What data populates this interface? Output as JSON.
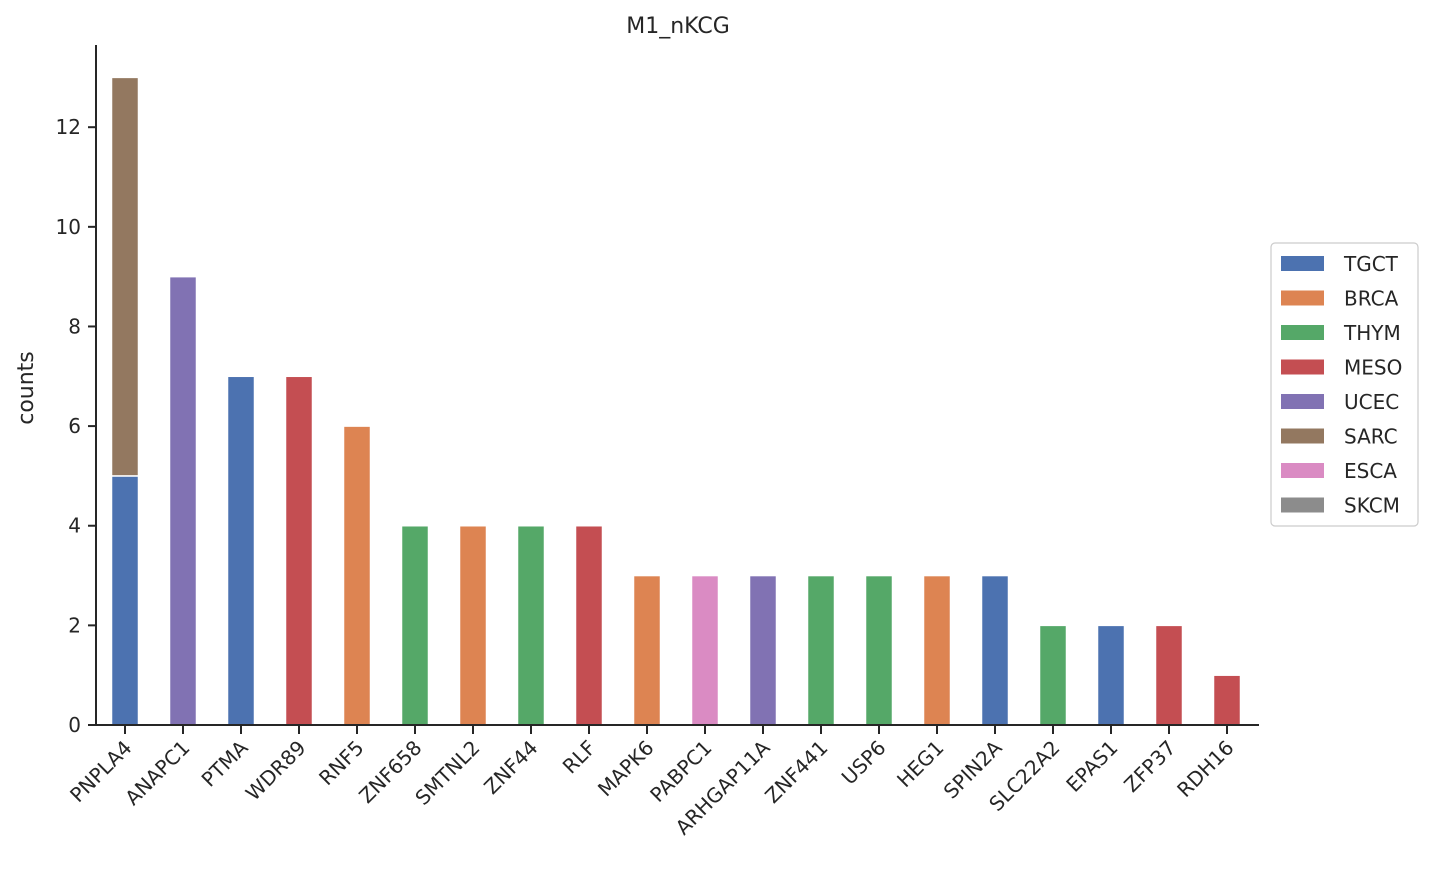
{
  "chart_data": {
    "type": "bar",
    "stacked": true,
    "title": "M1_nKCG",
    "xlabel": "",
    "ylabel": "counts",
    "ylim": [
      0,
      13.65
    ],
    "yticks": [
      0,
      2,
      4,
      6,
      8,
      10,
      12
    ],
    "grid": false,
    "legend": {
      "placement": "right-center"
    },
    "categories": [
      "PNPLA4",
      "ANAPC1",
      "PTMA",
      "WDR89",
      "RNF5",
      "ZNF658",
      "SMTNL2",
      "ZNF44",
      "RLF",
      "MAPK6",
      "PABPC1",
      "ARHGAP11A",
      "ZNF441",
      "USP6",
      "HEG1",
      "SPIN2A",
      "SLC22A2",
      "EPAS1",
      "ZFP37",
      "RDH16"
    ],
    "series": [
      {
        "name": "TGCT",
        "color": "#4c72b0",
        "values": [
          5,
          0,
          7,
          0,
          0,
          0,
          0,
          0,
          0,
          0,
          0,
          0,
          0,
          0,
          0,
          3,
          0,
          2,
          0,
          0
        ]
      },
      {
        "name": "BRCA",
        "color": "#dd8452",
        "values": [
          0,
          0,
          0,
          0,
          6,
          0,
          4,
          0,
          0,
          3,
          0,
          0,
          0,
          0,
          3,
          0,
          0,
          0,
          0,
          0
        ]
      },
      {
        "name": "THYM",
        "color": "#55a868",
        "values": [
          0,
          0,
          0,
          0,
          0,
          4,
          0,
          4,
          0,
          0,
          0,
          0,
          3,
          3,
          0,
          0,
          2,
          0,
          0,
          0
        ]
      },
      {
        "name": "MESO",
        "color": "#c44e52",
        "values": [
          0,
          0,
          0,
          7,
          0,
          0,
          0,
          0,
          4,
          0,
          0,
          0,
          0,
          0,
          0,
          0,
          0,
          0,
          2,
          1
        ]
      },
      {
        "name": "UCEC",
        "color": "#8172b3",
        "values": [
          0,
          9,
          0,
          0,
          0,
          0,
          0,
          0,
          0,
          0,
          0,
          3,
          0,
          0,
          0,
          0,
          0,
          0,
          0,
          0
        ]
      },
      {
        "name": "SARC",
        "color": "#937860",
        "values": [
          8,
          0,
          0,
          0,
          0,
          0,
          0,
          0,
          0,
          0,
          0,
          0,
          0,
          0,
          0,
          0,
          0,
          0,
          0,
          0
        ]
      },
      {
        "name": "ESCA",
        "color": "#da8bc3",
        "values": [
          0,
          0,
          0,
          0,
          0,
          0,
          0,
          0,
          0,
          0,
          3,
          0,
          0,
          0,
          0,
          0,
          0,
          0,
          0,
          0
        ]
      },
      {
        "name": "SKCM",
        "color": "#8c8c8c",
        "values": [
          0,
          0,
          0,
          0,
          0,
          0,
          0,
          0,
          0,
          0,
          0,
          0,
          0,
          0,
          0,
          0,
          0,
          0,
          0,
          0
        ]
      }
    ]
  }
}
